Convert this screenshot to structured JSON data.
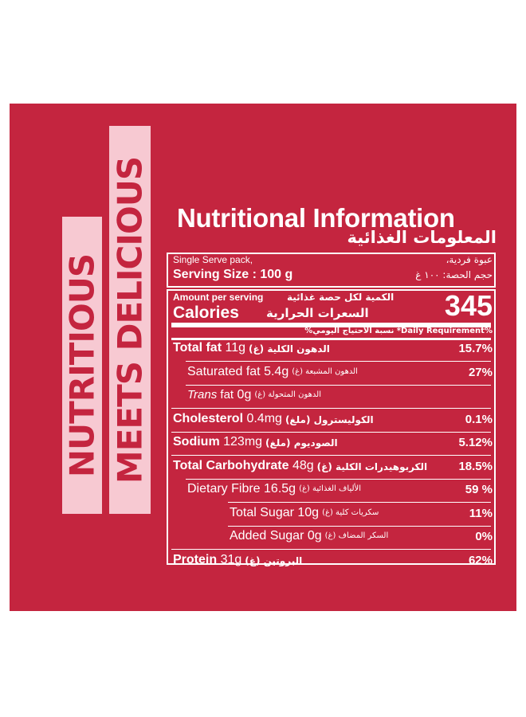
{
  "side_labels": {
    "line1": "NUTRITIOUS",
    "line2": "MEETS DELICIOUS"
  },
  "title": {
    "en": "Nutritional Information",
    "ar": "المعلومات الغذائية"
  },
  "serving": {
    "pack_en": "Single Serve pack,",
    "pack_ar": "عبوة فردية،",
    "size_en": "Serving Size : 100 g",
    "size_ar": "حجم الحصة: ١٠٠ غ"
  },
  "calories": {
    "amount_en": "Amount per serving",
    "amount_ar": "الكمية لكل حصة غذائية",
    "label_en": "Calories",
    "label_ar": "السعرات الحرارية",
    "value": "345",
    "dv_note": "%Daily Requirement* نسبة الاحتياج اليومي%"
  },
  "nutrients": [
    {
      "name": "Total fat",
      "amount": "11g",
      "ar": "الدهون الكلية (غ)",
      "dv": "15.7%",
      "bold": true,
      "indent": 0
    },
    {
      "name": "Saturated fat",
      "amount": "5.4g",
      "ar": "الدهون المشبعة (غ)",
      "dv": "27%",
      "bold": false,
      "indent": 1
    },
    {
      "name": "Trans fat",
      "amount": "0g",
      "ar": "الدهون المتحولة (غ)",
      "dv": "",
      "bold": false,
      "indent": 1
    },
    {
      "name": "Cholesterol",
      "amount": "0.4mg",
      "ar": "الكوليسترول (ملغ)",
      "dv": "0.1%",
      "bold": true,
      "indent": 0
    },
    {
      "name": "Sodium",
      "amount": "123mg",
      "ar": "الصوديوم (ملغ)",
      "dv": "5.12%",
      "bold": true,
      "indent": 0
    },
    {
      "name": "Total Carbohydrate",
      "amount": "48g",
      "ar": "الكربوهيدرات الكلية (غ)",
      "dv": "18.5%",
      "bold": true,
      "indent": 0
    },
    {
      "name": "Dietary Fibre",
      "amount": "16.5g",
      "ar": "الألياف الغذائية (غ)",
      "dv": "59 %",
      "bold": false,
      "indent": 1
    },
    {
      "name": "Total Sugar",
      "amount": "10g",
      "ar": "سكريات كلية (غ)",
      "dv": "11%",
      "bold": false,
      "indent": 2
    },
    {
      "name": "Added Sugar",
      "amount": "0g",
      "ar": "السكر المضاف (غ)",
      "dv": "0%",
      "bold": false,
      "indent": 2
    },
    {
      "name": "Protein",
      "amount": "31g",
      "ar": "البروتين (غ)",
      "dv": "62%",
      "bold": true,
      "indent": 0
    }
  ],
  "colors": {
    "panel": "#c4253f",
    "side_label_bg": "#f7c9d2",
    "text": "#ffffff"
  }
}
